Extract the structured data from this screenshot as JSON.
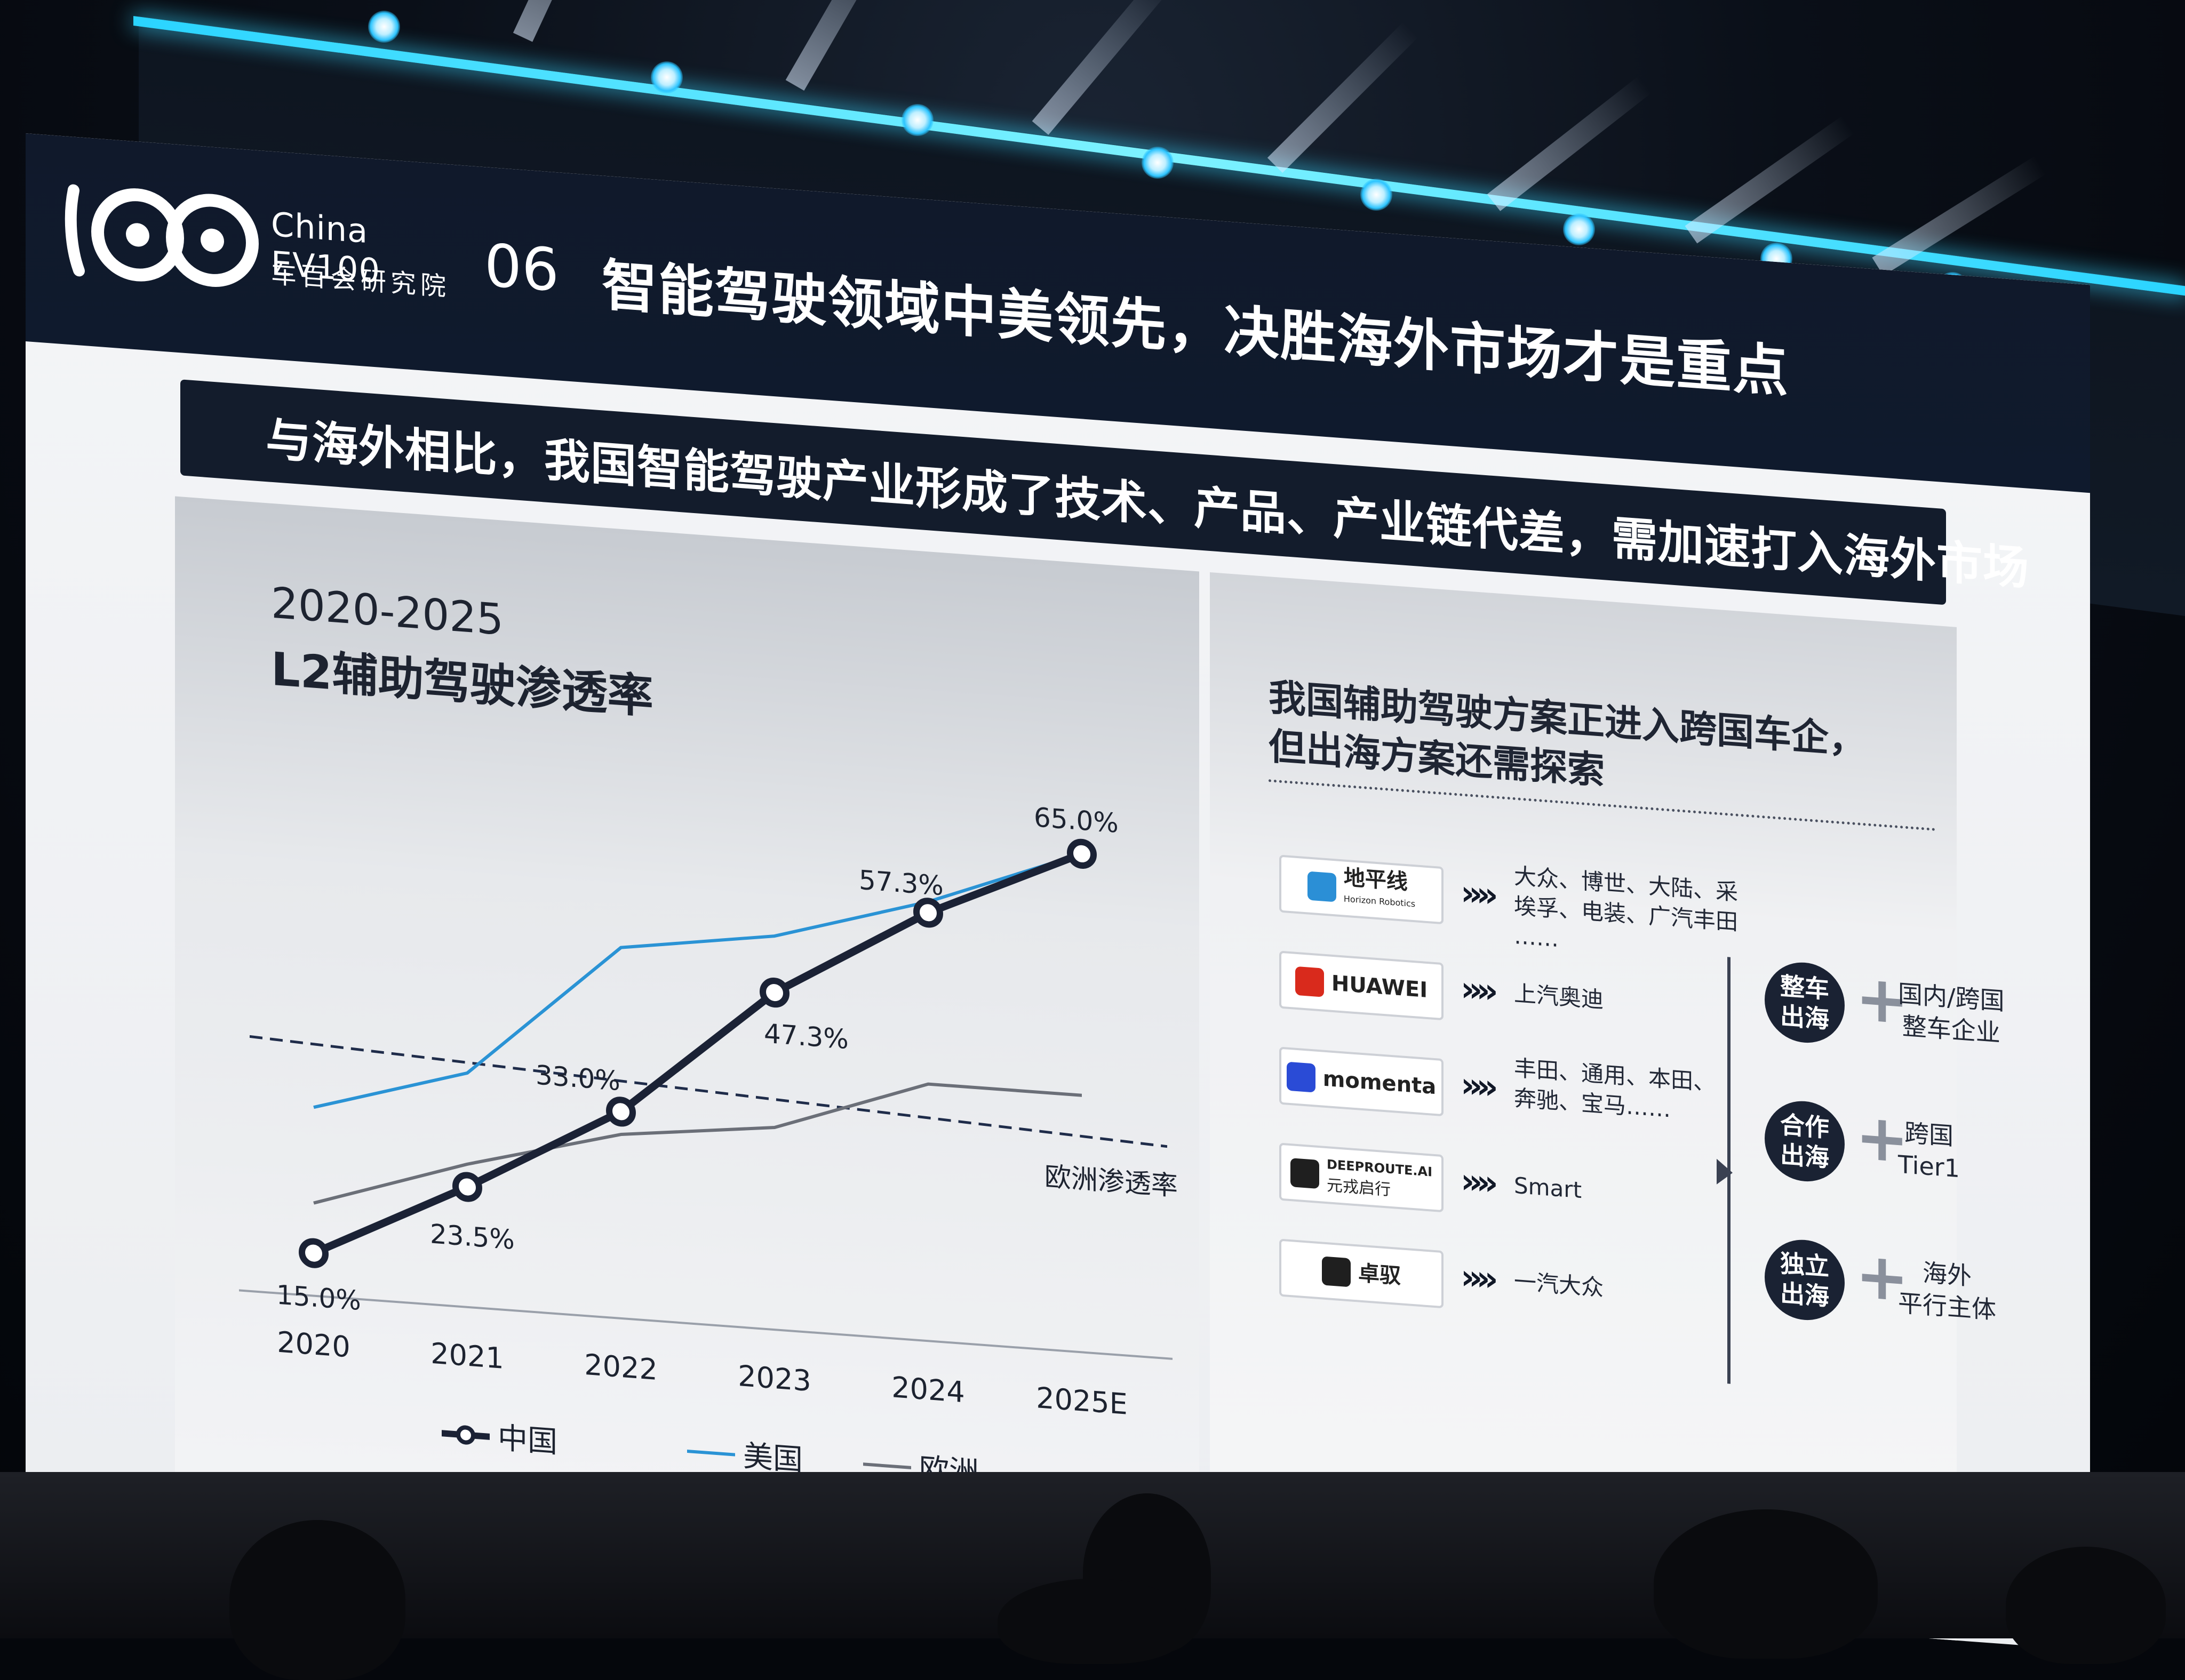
{
  "branding": {
    "logo_en": "China EV100",
    "logo_cn": "车百会研究院"
  },
  "slide": {
    "section_no": "06",
    "title": "智能驾驶领域中美领先，决胜海外市场才是重点",
    "subtitle": "与海外相比，我国智能驾驶产业形成了技术、产品、产业链代差，需加速打入海外市场"
  },
  "left_chart": {
    "title_years": "2020-2025",
    "title_metric": "L2辅助驾驶渗透率",
    "europe_line_label": "欧洲渗透率"
  },
  "chart_data": {
    "type": "line",
    "x": [
      "2020",
      "2021",
      "2022",
      "2023",
      "2024",
      "2025E"
    ],
    "series": [
      {
        "name": "中国",
        "values": [
          15.0,
          23.5,
          33.0,
          47.3,
          57.3,
          65.0
        ],
        "color": "#1b2235",
        "labels": [
          "15.0%",
          "23.5%",
          "33.0%",
          "47.3%",
          "57.3%",
          "65.0%"
        ]
      },
      {
        "name": "美国",
        "values": [
          31.0,
          36.0,
          51.0,
          53.5,
          58.5,
          65.0
        ],
        "color": "#2a93d5"
      },
      {
        "name": "欧洲",
        "values": [
          20.5,
          26.0,
          30.5,
          32.5,
          38.5,
          38.5
        ],
        "color": "#6b6f78"
      }
    ],
    "reference_line": {
      "label": "欧洲渗透率",
      "value": 36.5,
      "style": "dashed",
      "color": "#1f2c4a"
    },
    "ylim": [
      0,
      70
    ],
    "grid": false,
    "legend_position": "bottom"
  },
  "right_panel": {
    "title_line1": "我国辅助驾驶方案正进入跨国车企，",
    "title_line2": "但出海方案还需探索",
    "suppliers": [
      {
        "logo_text": "地平线",
        "logo_sub": "Horizon Robotics",
        "icon": "horizon-icon",
        "icon_color": "#2b8fd6",
        "customers": [
          "大众、博世、大陆、采",
          "埃孚、电装、广汽丰田",
          "……"
        ]
      },
      {
        "logo_text": "HUAWEI",
        "icon": "huawei-icon",
        "icon_color": "#d92a1c",
        "customers": [
          "上汽奥迪"
        ]
      },
      {
        "logo_text": "momenta",
        "icon": "momenta-icon",
        "icon_color": "#2a4bd6",
        "customers": [
          "丰田、通用、本田、",
          "奔驰、宝马……"
        ]
      },
      {
        "logo_text": "DEEPROUTE.AI",
        "logo_sub": "元戎启行",
        "icon": "deeproute-icon",
        "icon_color": "#1f1f1f",
        "customers": [
          "Smart"
        ]
      },
      {
        "logo_text": "卓驭",
        "icon": "zhuoyu-icon",
        "icon_color": "#1f1f1f",
        "customers": [
          "一汽大众"
        ]
      }
    ],
    "chevron": "»",
    "modes": [
      {
        "circle": [
          "整车",
          "出海"
        ],
        "desc": [
          "国内/跨国",
          "整车企业"
        ]
      },
      {
        "circle": [
          "合作",
          "出海"
        ],
        "desc": [
          "跨国",
          "Tier1"
        ]
      },
      {
        "circle": [
          "独立",
          "出海"
        ],
        "desc": [
          "海外",
          "平行主体"
        ]
      }
    ],
    "more": "……",
    "plus": "+"
  },
  "colors": {
    "stage_cyan": "#39d6ff",
    "navy": "#131c2c"
  }
}
